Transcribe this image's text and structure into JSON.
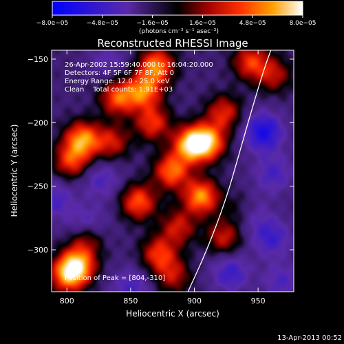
{
  "chart_data": {
    "type": "heatmap",
    "title": "Reconstructed RHESSI Image",
    "xlabel": "Heliocentric X (arcsec)",
    "ylabel": "Heliocentric Y (arcsec)",
    "xlim": [
      788,
      978
    ],
    "ylim": [
      -333,
      -143
    ],
    "x_ticks": [
      800,
      850,
      900,
      950
    ],
    "y_ticks": [
      -150,
      -200,
      -250,
      -300
    ],
    "x_tick_labels": [
      "800",
      "850",
      "900",
      "950"
    ],
    "y_tick_labels": [
      "−150",
      "−200",
      "−250",
      "−300"
    ],
    "colorbar": {
      "min": -8e-05,
      "max": 8e-05,
      "tick_labels": [
        "−8.0e−05",
        "−4.8e−05",
        "−1.6e−05",
        "1.6e−05",
        "4.8e−05",
        "8.0e−05"
      ],
      "units_label": "(photons cm⁻² s⁻¹ asec⁻²)"
    },
    "annotations": [
      "26-Apr-2002 15:59:40.000 to 16:04:20.000",
      "Detectors: 4F 5F 6F 7F 8F, Att 0",
      "Energy Range: 12.0 - 25.0 keV",
      "Clean    Total counts: 1.91E+03"
    ],
    "peak_label": "Position of Peak = [804,-310]",
    "peak_position": [
      804,
      -310
    ],
    "limb_curve": [
      [
        895,
        -333
      ],
      [
        910,
        -300
      ],
      [
        925,
        -260
      ],
      [
        935,
        -225
      ],
      [
        945,
        -190
      ],
      [
        954,
        -160
      ],
      [
        960,
        -143
      ]
    ],
    "hot_blobs": [
      [
        897,
        -217,
        0.95
      ],
      [
        910,
        -215,
        0.9
      ],
      [
        870,
        -155,
        0.8
      ],
      [
        860,
        -175,
        0.75
      ],
      [
        840,
        -180,
        0.7
      ],
      [
        812,
        -213,
        0.85
      ],
      [
        803,
        -230,
        0.6
      ],
      [
        882,
        -238,
        0.75
      ],
      [
        905,
        -258,
        0.85
      ],
      [
        856,
        -262,
        0.7
      ],
      [
        815,
        -290,
        0.6
      ],
      [
        808,
        -312,
        0.9
      ],
      [
        800,
        -320,
        0.7
      ],
      [
        872,
        -303,
        0.6
      ],
      [
        923,
        -290,
        0.5
      ],
      [
        887,
        -282,
        0.5
      ],
      [
        923,
        -192,
        0.55
      ],
      [
        944,
        -152,
        0.6
      ],
      [
        962,
        -162,
        0.45
      ],
      [
        937,
        -268,
        0.4
      ],
      [
        883,
        -320,
        0.45
      ],
      [
        835,
        -215,
        0.5
      ],
      [
        867,
        -200,
        0.6
      ]
    ],
    "cold_blobs": [
      [
        954,
        -207,
        0.9
      ],
      [
        962,
        -240,
        0.5
      ],
      [
        960,
        -290,
        0.6
      ],
      [
        928,
        -318,
        0.6
      ],
      [
        815,
        -282,
        0.7
      ],
      [
        850,
        -330,
        0.5
      ],
      [
        790,
        -260,
        0.5
      ],
      [
        942,
        -270,
        0.55
      ],
      [
        832,
        -150,
        0.35
      ],
      [
        968,
        -325,
        0.45
      ],
      [
        827,
        -245,
        0.45
      ]
    ]
  },
  "footer": {
    "timestamp": "13-Apr-2013 00:52"
  },
  "colors": {
    "background": "#000000",
    "limb": "#ffffff"
  }
}
